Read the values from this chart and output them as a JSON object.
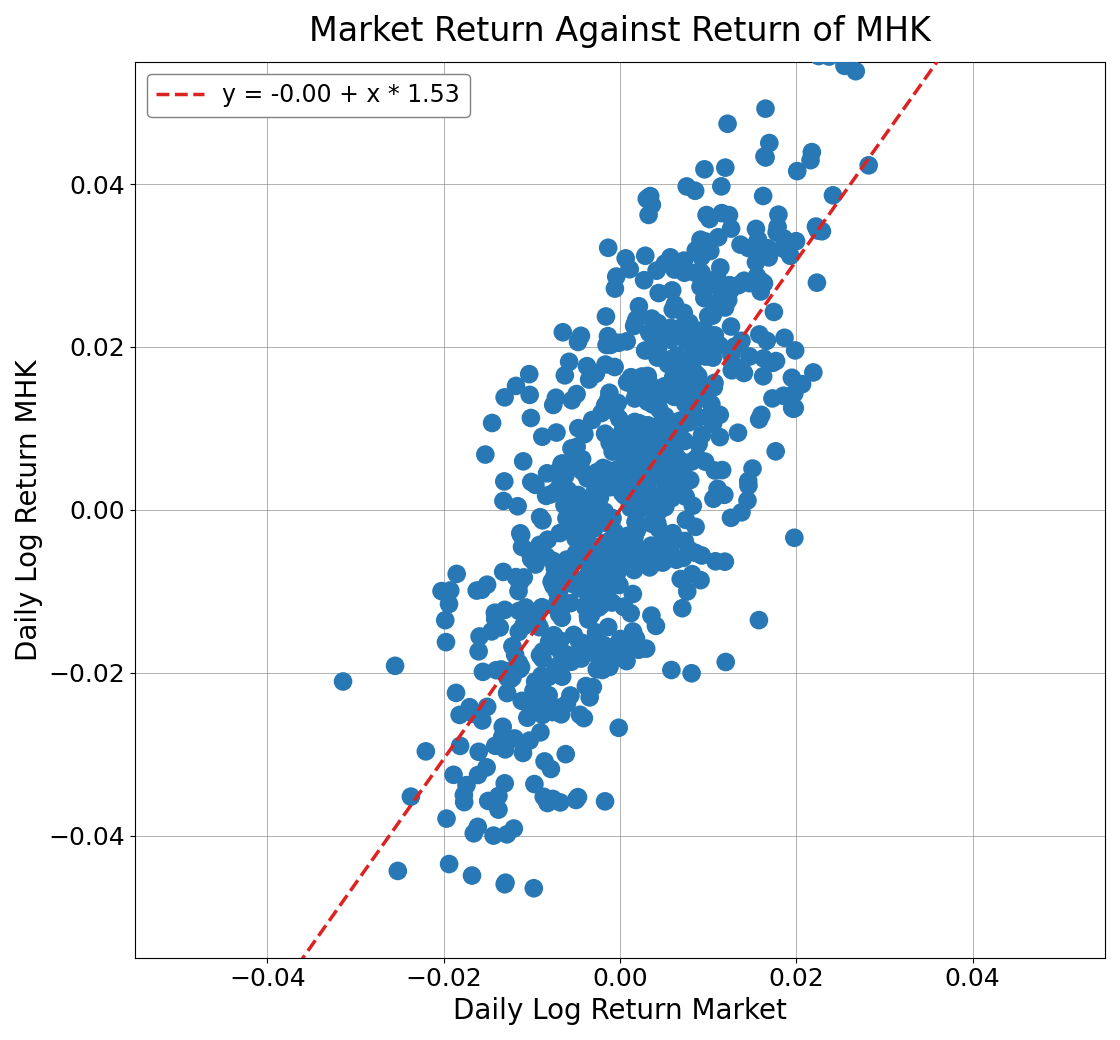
{
  "title": "Market Return Against Return of MHK",
  "xlabel": "Daily Log Return Market",
  "ylabel": "Daily Log Return MHK",
  "legend_label": "y = -0.00 + x * 1.53",
  "intercept": -0.0,
  "slope": 1.53,
  "xlim": [
    -0.055,
    0.055
  ],
  "ylim": [
    -0.055,
    0.055
  ],
  "xticks": [
    -0.04,
    -0.02,
    0.0,
    0.02,
    0.04
  ],
  "yticks": [
    -0.04,
    -0.02,
    0.0,
    0.02,
    0.04
  ],
  "scatter_color": "#2878b5",
  "line_color": "#dd2222",
  "scatter_alpha": 1.0,
  "scatter_size": 180,
  "seed": 42,
  "n_points": 750,
  "market_std": 0.01,
  "idiosyncratic_std": 0.013,
  "title_fontsize": 24,
  "label_fontsize": 20,
  "tick_fontsize": 18,
  "legend_fontsize": 17
}
